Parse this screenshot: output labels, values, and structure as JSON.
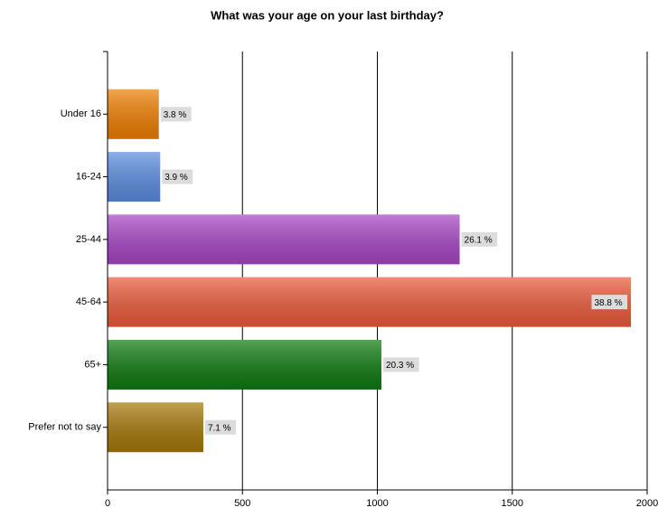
{
  "chart_data": {
    "type": "bar",
    "orientation": "horizontal",
    "title": "What was your age on your last birthday?",
    "categories": [
      "Under 16",
      "16-24",
      "25-44",
      "45-64",
      "65+",
      "Prefer not to say"
    ],
    "values": [
      190,
      195,
      1305,
      1940,
      1015,
      355
    ],
    "value_labels": [
      "3.8 %",
      "3.9 %",
      "26.1 %",
      "38.8 %",
      "20.3 %",
      "7.1 %"
    ],
    "colors": [
      "#f07f00",
      "#5b8de0",
      "#a845c6",
      "#ec5a3a",
      "#0f7a10",
      "#a6780a"
    ],
    "xlim": [
      0,
      2000
    ],
    "xticks": [
      0,
      500,
      1000,
      1500,
      2000
    ],
    "grid": true
  }
}
